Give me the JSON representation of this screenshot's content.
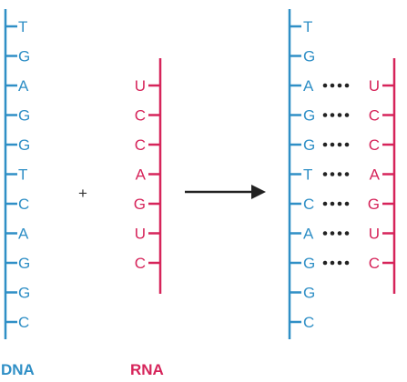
{
  "dna_strand": {
    "label": "DNA",
    "bases": [
      "T",
      "G",
      "A",
      "G",
      "G",
      "T",
      "C",
      "A",
      "G",
      "G",
      "C"
    ],
    "color": "#2f8fc6"
  },
  "rna_strand": {
    "label": "RNA",
    "bases": [
      "U",
      "C",
      "C",
      "A",
      "G",
      "U",
      "C"
    ],
    "color": "#d6245a"
  },
  "operator": "+",
  "hybrid": {
    "dna_bases": [
      "T",
      "G",
      "A",
      "G",
      "G",
      "T",
      "C",
      "A",
      "G",
      "G",
      "C"
    ],
    "rna_bases": [
      "U",
      "C",
      "C",
      "A",
      "G",
      "U",
      "C"
    ],
    "pair_start_index": 2
  },
  "colors": {
    "arrow": "#222222",
    "bond_dots": "#222222"
  }
}
